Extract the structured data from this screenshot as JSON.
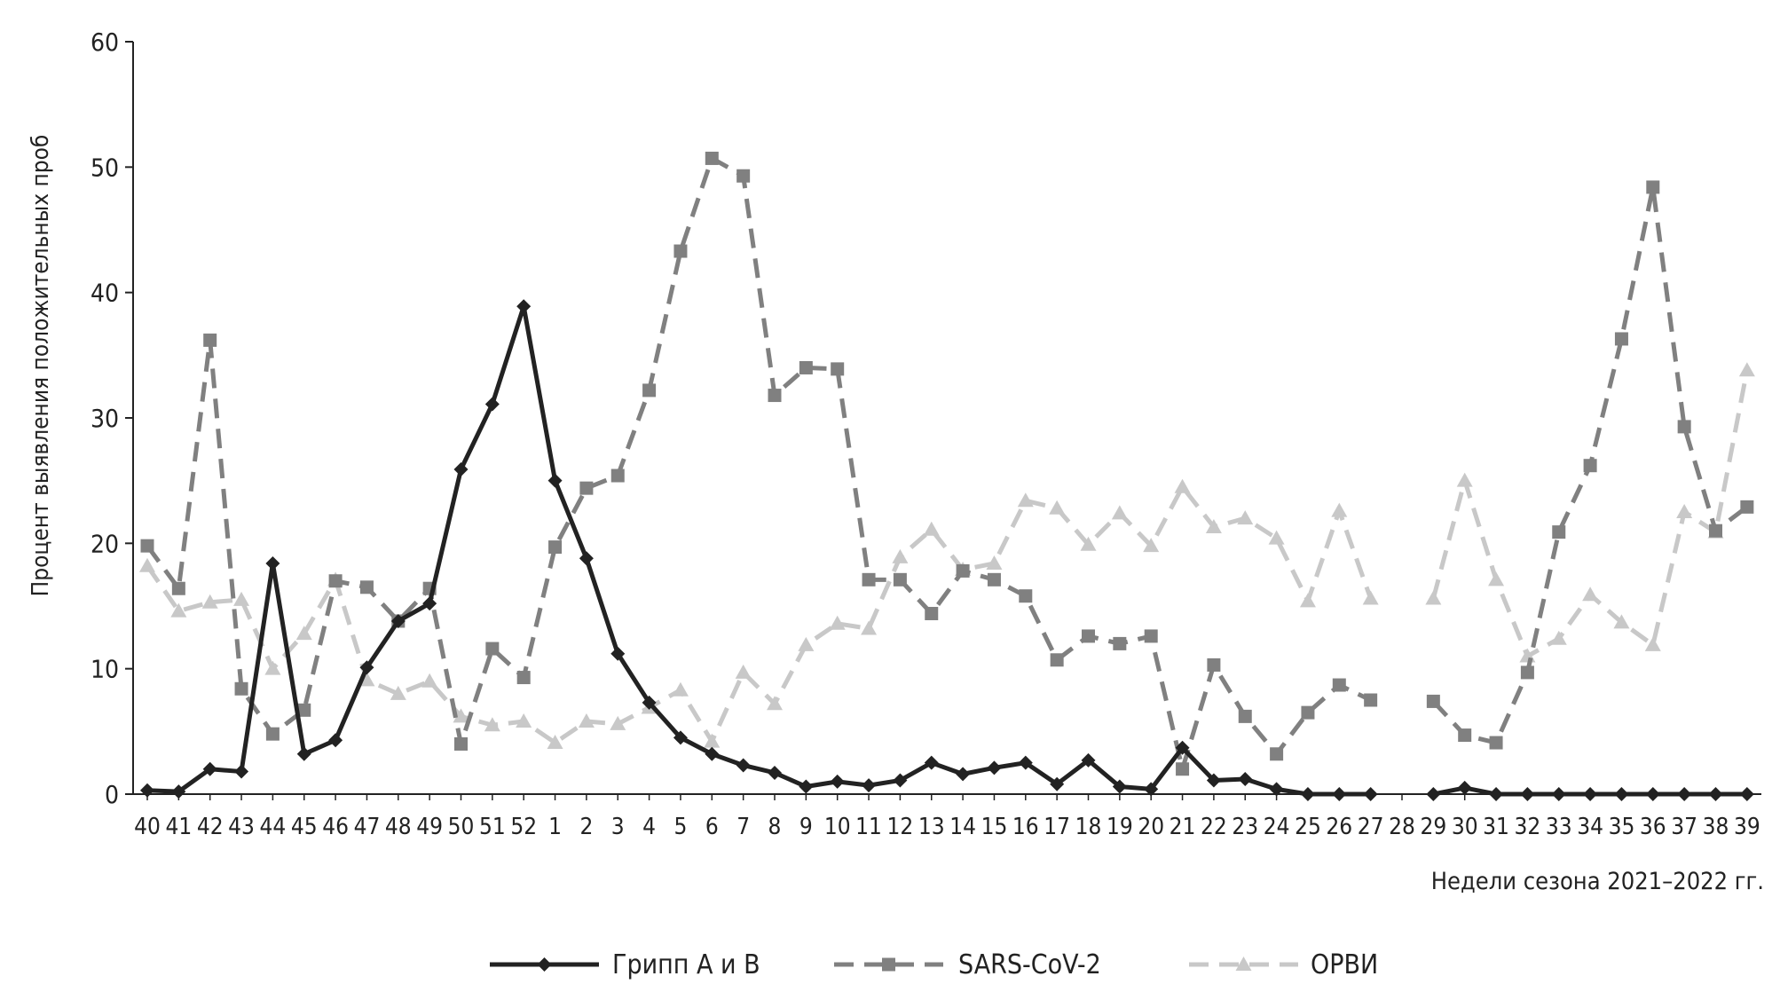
{
  "chart_data": {
    "type": "line",
    "title": "",
    "ylabel": "Процент выявления положительных проб",
    "xlabel": "Недели сезона 2021–2022 гг.",
    "ylim": [
      0,
      60
    ],
    "yticks": [
      "0",
      "10",
      "20",
      "30",
      "40",
      "50",
      "60"
    ],
    "grid": false,
    "legend_position": "bottom",
    "categories": [
      "40",
      "41",
      "42",
      "43",
      "44",
      "45",
      "46",
      "47",
      "48",
      "49",
      "50",
      "51",
      "52",
      "1",
      "2",
      "3",
      "4",
      "5",
      "6",
      "7",
      "8",
      "9",
      "10",
      "11",
      "12",
      "13",
      "14",
      "15",
      "16",
      "17",
      "18",
      "19",
      "20",
      "21",
      "22",
      "23",
      "24",
      "25",
      "26",
      "27",
      "28",
      "29",
      "30",
      "31",
      "32",
      "33",
      "34",
      "35",
      "36",
      "37",
      "38",
      "39"
    ],
    "series": [
      {
        "name": "Грипп А и В",
        "color": "#222222",
        "line_style": "solid",
        "marker": "diamond",
        "values": [
          0.3,
          0.2,
          2.0,
          1.8,
          18.4,
          3.2,
          4.3,
          10.1,
          13.8,
          15.2,
          25.9,
          31.1,
          38.9,
          25.0,
          18.8,
          11.2,
          7.3,
          4.5,
          3.2,
          2.3,
          1.7,
          0.6,
          1.0,
          0.7,
          1.1,
          2.5,
          1.6,
          2.1,
          2.5,
          0.8,
          2.7,
          0.6,
          0.4,
          3.7,
          1.1,
          1.2,
          0.4,
          0.0,
          0.0,
          0.0,
          null,
          0.0,
          0.5,
          0.0,
          0.0,
          0.0,
          0.0,
          0.0,
          0.0,
          0.0,
          0.0,
          0.0
        ]
      },
      {
        "name": "SARS-CoV-2",
        "color": "#808080",
        "line_style": "dashed",
        "marker": "square",
        "values": [
          19.8,
          16.4,
          36.2,
          8.4,
          4.8,
          6.7,
          17.0,
          16.5,
          13.8,
          16.4,
          4.0,
          11.6,
          9.3,
          19.7,
          24.4,
          25.4,
          32.2,
          43.3,
          50.7,
          49.3,
          31.8,
          34.0,
          33.9,
          17.1,
          17.1,
          14.4,
          17.8,
          17.1,
          15.8,
          10.7,
          12.6,
          12.0,
          12.6,
          2.0,
          10.3,
          6.2,
          3.2,
          6.5,
          8.7,
          7.5,
          null,
          7.4,
          4.7,
          4.1,
          9.7,
          20.9,
          26.2,
          36.3,
          48.4,
          29.3,
          21.0,
          22.9
        ]
      },
      {
        "name": "ОРВИ",
        "color": "#c8c8c8",
        "line_style": "dashed",
        "marker": "triangle",
        "values": [
          18.2,
          14.6,
          15.3,
          15.5,
          10.0,
          12.8,
          17.1,
          9.1,
          8.0,
          9.0,
          6.2,
          5.5,
          5.8,
          4.1,
          5.8,
          5.6,
          6.9,
          8.3,
          4.2,
          9.7,
          7.2,
          11.9,
          13.6,
          13.2,
          18.9,
          21.1,
          17.9,
          18.4,
          23.4,
          22.8,
          19.9,
          22.4,
          19.8,
          24.5,
          21.3,
          22.0,
          20.4,
          15.4,
          22.6,
          15.6,
          null,
          15.6,
          25.0,
          17.1,
          11.0,
          12.4,
          15.9,
          13.7,
          11.9,
          22.5,
          20.9,
          33.8
        ]
      }
    ]
  }
}
